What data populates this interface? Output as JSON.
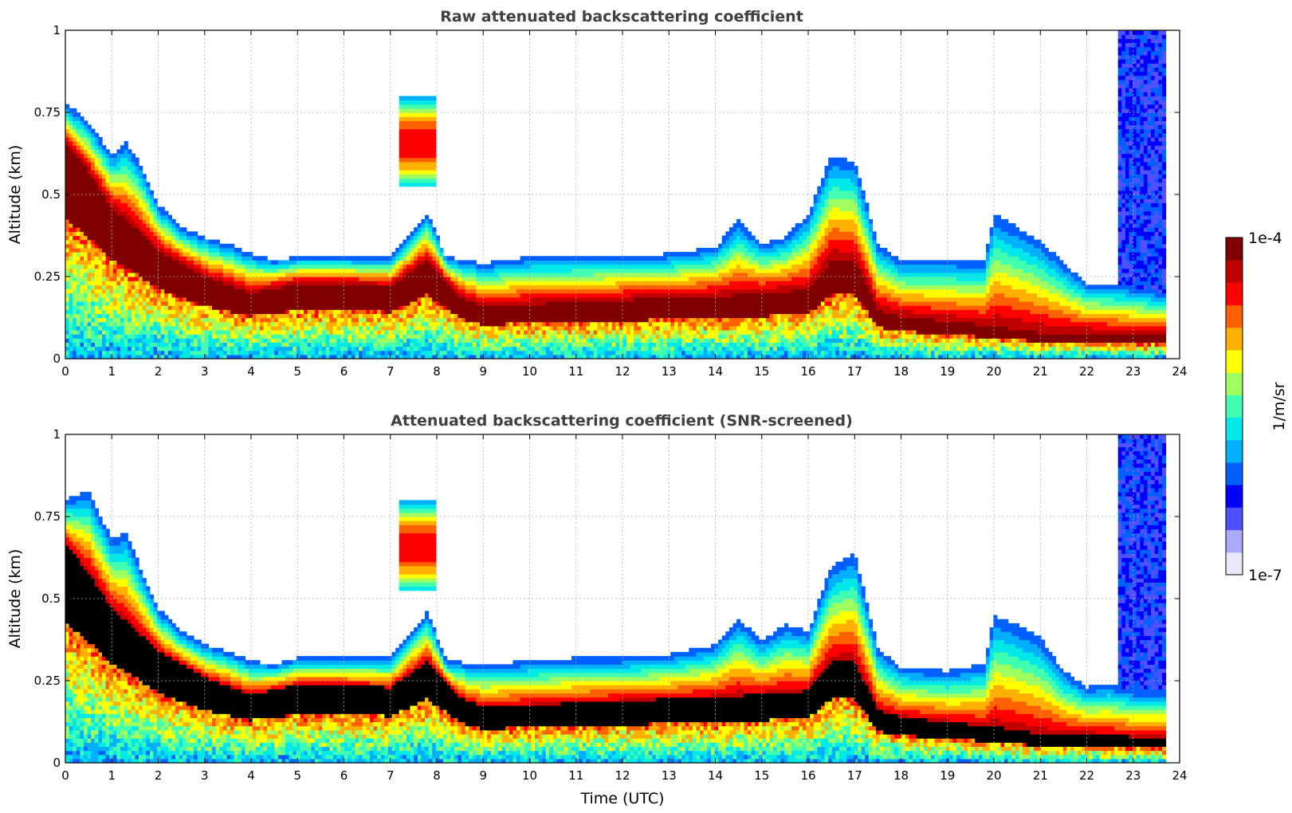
{
  "chart_data": [
    {
      "type": "heatmap",
      "title": "Raw attenuated backscattering coefficient",
      "xlabel": "",
      "ylabel": "Altitude (km)",
      "xlim": [
        0,
        24
      ],
      "ylim": [
        0,
        1
      ],
      "x_ticks": [
        "0",
        "1",
        "2",
        "3",
        "4",
        "5",
        "6",
        "7",
        "8",
        "9",
        "10",
        "11",
        "12",
        "13",
        "14",
        "15",
        "16",
        "17",
        "18",
        "19",
        "20",
        "21",
        "22",
        "23",
        "24"
      ],
      "y_ticks": [
        "0",
        "0.25",
        "0.5",
        "0.75",
        "1"
      ],
      "grid": true,
      "features": {
        "layer_top_km": [
          [
            0,
            0.78
          ],
          [
            0.5,
            0.72
          ],
          [
            1,
            0.62
          ],
          [
            1.3,
            0.66
          ],
          [
            1.6,
            0.6
          ],
          [
            2,
            0.47
          ],
          [
            2.5,
            0.4
          ],
          [
            3,
            0.37
          ],
          [
            3.5,
            0.35
          ],
          [
            4,
            0.32
          ],
          [
            4.5,
            0.3
          ],
          [
            5,
            0.31
          ],
          [
            6,
            0.31
          ],
          [
            7,
            0.31
          ],
          [
            7.8,
            0.44
          ],
          [
            8.2,
            0.31
          ],
          [
            9,
            0.29
          ],
          [
            10,
            0.31
          ],
          [
            11,
            0.31
          ],
          [
            12,
            0.31
          ],
          [
            13,
            0.32
          ],
          [
            14,
            0.34
          ],
          [
            14.5,
            0.42
          ],
          [
            15,
            0.35
          ],
          [
            15.5,
            0.37
          ],
          [
            16,
            0.44
          ],
          [
            16.5,
            0.62
          ],
          [
            17,
            0.6
          ],
          [
            17.5,
            0.35
          ],
          [
            18,
            0.3
          ],
          [
            19,
            0.3
          ],
          [
            19.8,
            0.3
          ],
          [
            20,
            0.44
          ],
          [
            20.5,
            0.4
          ],
          [
            21,
            0.36
          ],
          [
            21.5,
            0.29
          ],
          [
            22,
            0.23
          ],
          [
            22.5,
            0.23
          ],
          [
            23,
            0.22
          ],
          [
            23.7,
            0.2
          ]
        ],
        "layer_core_km": [
          [
            0,
            0.66
          ],
          [
            0.5,
            0.57
          ],
          [
            1,
            0.46
          ],
          [
            1.5,
            0.4
          ],
          [
            2,
            0.33
          ],
          [
            3,
            0.25
          ],
          [
            4,
            0.2
          ],
          [
            5,
            0.23
          ],
          [
            6,
            0.23
          ],
          [
            7,
            0.22
          ],
          [
            7.8,
            0.3
          ],
          [
            8.5,
            0.19
          ],
          [
            9,
            0.16
          ],
          [
            12,
            0.18
          ],
          [
            14,
            0.19
          ],
          [
            15,
            0.2
          ],
          [
            16,
            0.21
          ],
          [
            16.5,
            0.3
          ],
          [
            17,
            0.3
          ],
          [
            17.5,
            0.15
          ],
          [
            18,
            0.13
          ],
          [
            20,
            0.1
          ],
          [
            21,
            0.08
          ],
          [
            22,
            0.08
          ],
          [
            23,
            0.07
          ],
          [
            23.7,
            0.07
          ]
        ],
        "elevated_cloud": {
          "x_range": [
            7.2,
            8.0
          ],
          "alt_range_km": [
            0.52,
            0.8
          ]
        },
        "noise_column": {
          "x_range": [
            22.7,
            23.7
          ],
          "alt_range_km": [
            0.2,
            1.0
          ]
        }
      }
    },
    {
      "type": "heatmap",
      "title": "Attenuated backscattering coefficient (SNR-screened)",
      "xlabel": "Time (UTC)",
      "ylabel": "Altitude (km)",
      "xlim": [
        0,
        24
      ],
      "ylim": [
        0,
        1
      ],
      "x_ticks": [
        "0",
        "1",
        "2",
        "3",
        "4",
        "5",
        "6",
        "7",
        "8",
        "9",
        "10",
        "11",
        "12",
        "13",
        "14",
        "15",
        "16",
        "17",
        "18",
        "19",
        "20",
        "21",
        "22",
        "23",
        "24"
      ],
      "y_ticks": [
        "0",
        "0.25",
        "0.5",
        "0.75",
        "1"
      ],
      "grid": true,
      "features": {
        "saturated_color": "#000000",
        "layer_top_km": [
          [
            0,
            0.8
          ],
          [
            0.5,
            0.83
          ],
          [
            1,
            0.68
          ],
          [
            1.3,
            0.7
          ],
          [
            1.6,
            0.6
          ],
          [
            2,
            0.47
          ],
          [
            2.5,
            0.4
          ],
          [
            3,
            0.36
          ],
          [
            3.5,
            0.34
          ],
          [
            4,
            0.31
          ],
          [
            4.5,
            0.3
          ],
          [
            5,
            0.32
          ],
          [
            6,
            0.32
          ],
          [
            7,
            0.32
          ],
          [
            7.8,
            0.46
          ],
          [
            8.2,
            0.31
          ],
          [
            9,
            0.3
          ],
          [
            10,
            0.31
          ],
          [
            11,
            0.32
          ],
          [
            12,
            0.32
          ],
          [
            13,
            0.33
          ],
          [
            14,
            0.36
          ],
          [
            14.5,
            0.44
          ],
          [
            15,
            0.37
          ],
          [
            15.5,
            0.42
          ],
          [
            16,
            0.4
          ],
          [
            16.5,
            0.6
          ],
          [
            17,
            0.64
          ],
          [
            17.5,
            0.35
          ],
          [
            18,
            0.29
          ],
          [
            19,
            0.28
          ],
          [
            19.8,
            0.3
          ],
          [
            20,
            0.45
          ],
          [
            20.5,
            0.42
          ],
          [
            21,
            0.38
          ],
          [
            21.5,
            0.28
          ],
          [
            22,
            0.23
          ],
          [
            22.5,
            0.24
          ],
          [
            23,
            0.22
          ],
          [
            23.7,
            0.22
          ]
        ],
        "layer_core_km": [
          [
            0,
            0.66
          ],
          [
            0.5,
            0.57
          ],
          [
            1,
            0.46
          ],
          [
            1.5,
            0.4
          ],
          [
            2,
            0.33
          ],
          [
            3,
            0.25
          ],
          [
            4,
            0.2
          ],
          [
            5,
            0.23
          ],
          [
            6,
            0.23
          ],
          [
            7,
            0.22
          ],
          [
            7.8,
            0.3
          ],
          [
            8.5,
            0.19
          ],
          [
            9,
            0.16
          ],
          [
            12,
            0.18
          ],
          [
            14,
            0.19
          ],
          [
            15,
            0.2
          ],
          [
            16,
            0.21
          ],
          [
            16.5,
            0.3
          ],
          [
            17,
            0.3
          ],
          [
            17.5,
            0.15
          ],
          [
            18,
            0.13
          ],
          [
            20,
            0.1
          ],
          [
            21,
            0.08
          ],
          [
            22,
            0.08
          ],
          [
            23,
            0.07
          ],
          [
            23.7,
            0.07
          ]
        ],
        "elevated_cloud": {
          "x_range": [
            7.2,
            8.0
          ],
          "alt_range_km": [
            0.52,
            0.8
          ]
        },
        "noise_column": {
          "x_range": [
            22.7,
            23.7
          ],
          "alt_range_km": [
            0.2,
            1.0
          ]
        }
      }
    }
  ],
  "colorbar": {
    "label": "1/m/sr",
    "max_label": "1e-4",
    "min_label": "1e-7",
    "scale": "log",
    "range": [
      1e-07,
      0.0001
    ],
    "colors": [
      "#e8e8f8",
      "#aaaaff",
      "#5050ff",
      "#0000ff",
      "#0060ff",
      "#00b0ff",
      "#00e8e8",
      "#40ffb0",
      "#a0ff60",
      "#ffff00",
      "#ffb000",
      "#ff6000",
      "#ff0000",
      "#c00000",
      "#800000"
    ]
  }
}
